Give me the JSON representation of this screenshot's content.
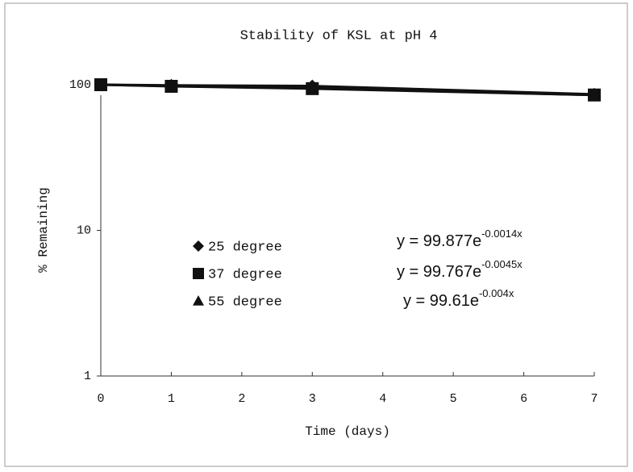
{
  "chart_data": {
    "type": "line",
    "title": "Stability of KSL at pH 4",
    "xlabel": "Time (days)",
    "ylabel": "% Remaining",
    "x": [
      0,
      1,
      3,
      7
    ],
    "series": [
      {
        "name": "25 degree",
        "marker": "diamond",
        "color": "#111111",
        "values": [
          100,
          99,
          98,
          86
        ]
      },
      {
        "name": "37 degree",
        "marker": "square",
        "color": "#111111",
        "values": [
          100,
          97.5,
          94,
          85
        ]
      },
      {
        "name": "55 degree",
        "marker": "triangle",
        "color": "#111111",
        "values": [
          100,
          98,
          95,
          85
        ]
      }
    ],
    "xlim": [
      0,
      7
    ],
    "xticks": [
      0,
      1,
      2,
      3,
      4,
      5,
      6,
      7
    ],
    "ylim": [
      1,
      100
    ],
    "yticks": [
      1,
      10,
      100
    ],
    "log_y": true,
    "annotations": [
      {
        "text": "y = 99.877e",
        "exponent": "-0.0014x"
      },
      {
        "text": "y = 99.767e",
        "exponent": "-0.0045x"
      },
      {
        "text": "y = 99.61e",
        "exponent": "-0.004x"
      }
    ]
  }
}
